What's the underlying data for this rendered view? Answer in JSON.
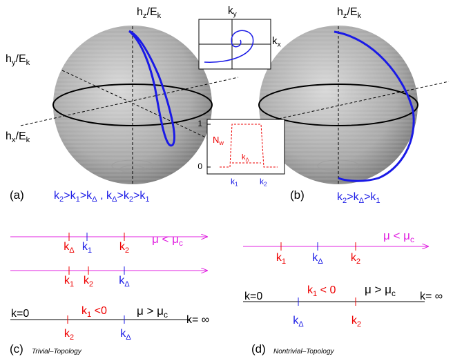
{
  "panel_a": {
    "axis_z": [
      "h",
      "z",
      "/E",
      "k"
    ],
    "axis_y": [
      "h",
      "y",
      "/E",
      "k"
    ],
    "axis_x": [
      "h",
      "x",
      "/E",
      "k"
    ],
    "label": [
      "(a)"
    ],
    "condition": [
      "k",
      "2",
      ">k",
      "1",
      ">k",
      "Δ",
      " , k",
      "Δ",
      ">k",
      "2",
      ">k",
      "1"
    ]
  },
  "inset_trajectory": {
    "y_label": [
      "k",
      "y"
    ],
    "x_label": [
      "k",
      "x"
    ]
  },
  "inset_winding": {
    "y_label": [
      "N",
      "w"
    ],
    "y_tick_top": [
      "1"
    ],
    "y_tick_bottom": [
      "0"
    ],
    "plateau_label": [
      "k",
      "Δ"
    ],
    "x_tick_left": [
      "k",
      "1"
    ],
    "x_tick_right": [
      "k",
      "2"
    ]
  },
  "panel_b": {
    "axis_z": [
      "h",
      "z",
      "/E",
      "k"
    ],
    "label": [
      "(b)"
    ],
    "condition": [
      "k",
      "2",
      ">k",
      "Δ",
      ">k",
      "1"
    ]
  },
  "panel_c": {
    "label": [
      "(c)"
    ],
    "topology": [
      "Trivial–Topology"
    ],
    "line1": {
      "labels": [
        [
          "k",
          "Δ"
        ],
        [
          "k",
          "1"
        ],
        [
          "k",
          "2"
        ]
      ],
      "regime": [
        "μ < μ",
        "c"
      ]
    },
    "line2": {
      "labels": [
        [
          "k",
          "1"
        ],
        [
          "k",
          "2"
        ],
        [
          "k",
          "Δ"
        ]
      ]
    },
    "line3": {
      "start": [
        "k=0"
      ],
      "end": [
        "k= ∞"
      ],
      "note": [
        "k",
        "1",
        " <0"
      ],
      "regime": [
        "μ > μ",
        "c"
      ],
      "labels": [
        [
          "k",
          "2"
        ],
        [
          "k",
          "Δ"
        ]
      ]
    }
  },
  "panel_d": {
    "label": [
      "(d)"
    ],
    "topology": [
      "Nontrivial–Topology"
    ],
    "line1": {
      "labels": [
        [
          "k",
          "1"
        ],
        [
          "k",
          "Δ"
        ],
        [
          "k",
          "2"
        ]
      ],
      "regime": [
        "μ < μ",
        "c"
      ]
    },
    "line2": {
      "start": [
        "k=0"
      ],
      "end": [
        "k= ∞"
      ],
      "note": [
        "k",
        "1",
        " < 0"
      ],
      "regime": [
        "μ > μ",
        "c"
      ],
      "labels": [
        [
          "k",
          "Δ"
        ],
        [
          "k",
          "2"
        ]
      ]
    }
  }
}
